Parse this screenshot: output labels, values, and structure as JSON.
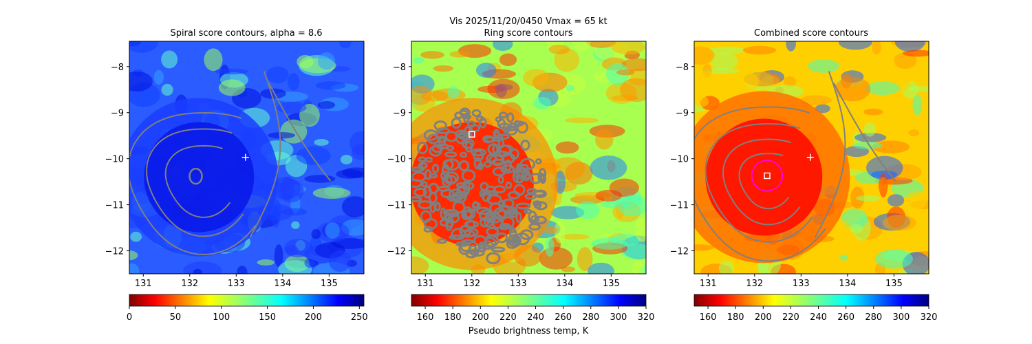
{
  "figure": {
    "suptitle_line": "Vis  2025/11/20/0450    Vmax = 65 kt"
  },
  "chart_data": [
    {
      "type": "heatmap",
      "title": "Spiral score contours, alpha =  8.6",
      "xlim": [
        130.7,
        135.75
      ],
      "ylim": [
        -12.5,
        -7.45
      ],
      "xticks": [
        131,
        132,
        133,
        134,
        135
      ],
      "yticks": [
        -8,
        -9,
        -10,
        -11,
        -12
      ],
      "colormap": "jet_r",
      "colorbar": {
        "range": [
          0,
          255
        ],
        "ticks": [
          0,
          50,
          100,
          150,
          200,
          250
        ],
        "label": ""
      },
      "storm_center": [
        132.2,
        -10.4
      ],
      "markers": [
        {
          "type": "plus",
          "color": "#ffffff",
          "x": 133.2,
          "y": -9.97
        }
      ],
      "contour_color": "#808080",
      "contour_levels": "spiral"
    },
    {
      "type": "heatmap",
      "title": "Ring score contours",
      "xlim": [
        130.7,
        135.75
      ],
      "ylim": [
        -12.5,
        -7.45
      ],
      "xticks": [
        131,
        132,
        133,
        134,
        135
      ],
      "yticks": [
        -8,
        -9,
        -10,
        -11,
        -12
      ],
      "colormap": "jet_r",
      "colorbar": {
        "range": [
          150,
          320
        ],
        "ticks": [
          160,
          180,
          200,
          220,
          240,
          260,
          280,
          300,
          320
        ],
        "label": "Pseudo brightness temp, K"
      },
      "storm_center": [
        132.0,
        -10.4
      ],
      "markers": [
        {
          "type": "square",
          "color": "#ffffff",
          "x": 132.0,
          "y": -9.47
        }
      ],
      "contour_color": "#808080",
      "contour_levels": "ring"
    },
    {
      "type": "heatmap",
      "title": "Combined score contours",
      "xlim": [
        130.7,
        135.75
      ],
      "ylim": [
        -12.5,
        -7.45
      ],
      "xticks": [
        131,
        132,
        133,
        134,
        135
      ],
      "yticks": [
        -8,
        -9,
        -10,
        -11,
        -12
      ],
      "colormap": "jet_r",
      "colorbar": {
        "range": [
          150,
          320
        ],
        "ticks": [
          160,
          180,
          200,
          220,
          240,
          260,
          280,
          300,
          320
        ],
        "label": ""
      },
      "storm_center": [
        132.2,
        -10.4
      ],
      "markers": [
        {
          "type": "plus",
          "color": "#ffffff",
          "x": 133.2,
          "y": -9.97
        },
        {
          "type": "square",
          "color": "#ffffff",
          "x": 132.27,
          "y": -10.37
        },
        {
          "type": "circle",
          "color": "#ff00ff",
          "x": 132.27,
          "y": -10.37,
          "radius": 0.33
        }
      ],
      "contour_color": "#808080",
      "contour_levels": "combined"
    }
  ]
}
